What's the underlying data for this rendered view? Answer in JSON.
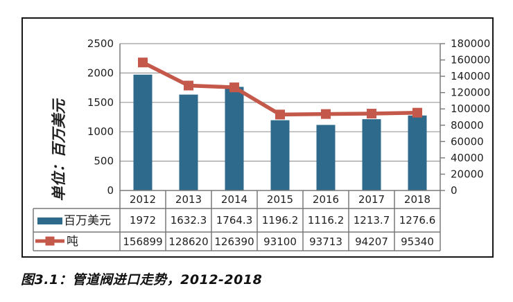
{
  "figure": {
    "caption": "图3.1：管道阀进口走势，2012-2018"
  },
  "chart_data": {
    "type": "combo-bar-line",
    "categories": [
      "2012",
      "2013",
      "2014",
      "2015",
      "2016",
      "2017",
      "2018"
    ],
    "series": [
      {
        "name": "百万美元",
        "type": "bar",
        "axis": "left",
        "color": "#2E6A8C",
        "values": [
          1972,
          1632.3,
          1764.3,
          1196.2,
          1116.2,
          1213.7,
          1276.6
        ]
      },
      {
        "name": "吨",
        "type": "line",
        "axis": "right",
        "color": "#C4584A",
        "values": [
          156899,
          128620,
          126390,
          93100,
          93713,
          94207,
          95340
        ]
      }
    ],
    "left_axis": {
      "title": "单位：百万美元",
      "min": 0,
      "max": 2500,
      "step": 500,
      "tick_labels": [
        "0",
        "500",
        "1000",
        "1500",
        "2000",
        "2500"
      ]
    },
    "right_axis": {
      "min": 0,
      "max": 180000,
      "step": 20000,
      "tick_labels": [
        "0",
        "20000",
        "40000",
        "60000",
        "80000",
        "100000",
        "120000",
        "140000",
        "160000",
        "180000"
      ]
    },
    "grid": true,
    "legend_position": "table-left-column",
    "data_table_shown": true
  },
  "style": {
    "bar_color": "#2E6A8C",
    "line_color": "#C4584A",
    "grid_color": "#9A9A9A",
    "axis_color": "#787878",
    "text_color": "#1E1E1E",
    "frame_color": "#161616"
  }
}
